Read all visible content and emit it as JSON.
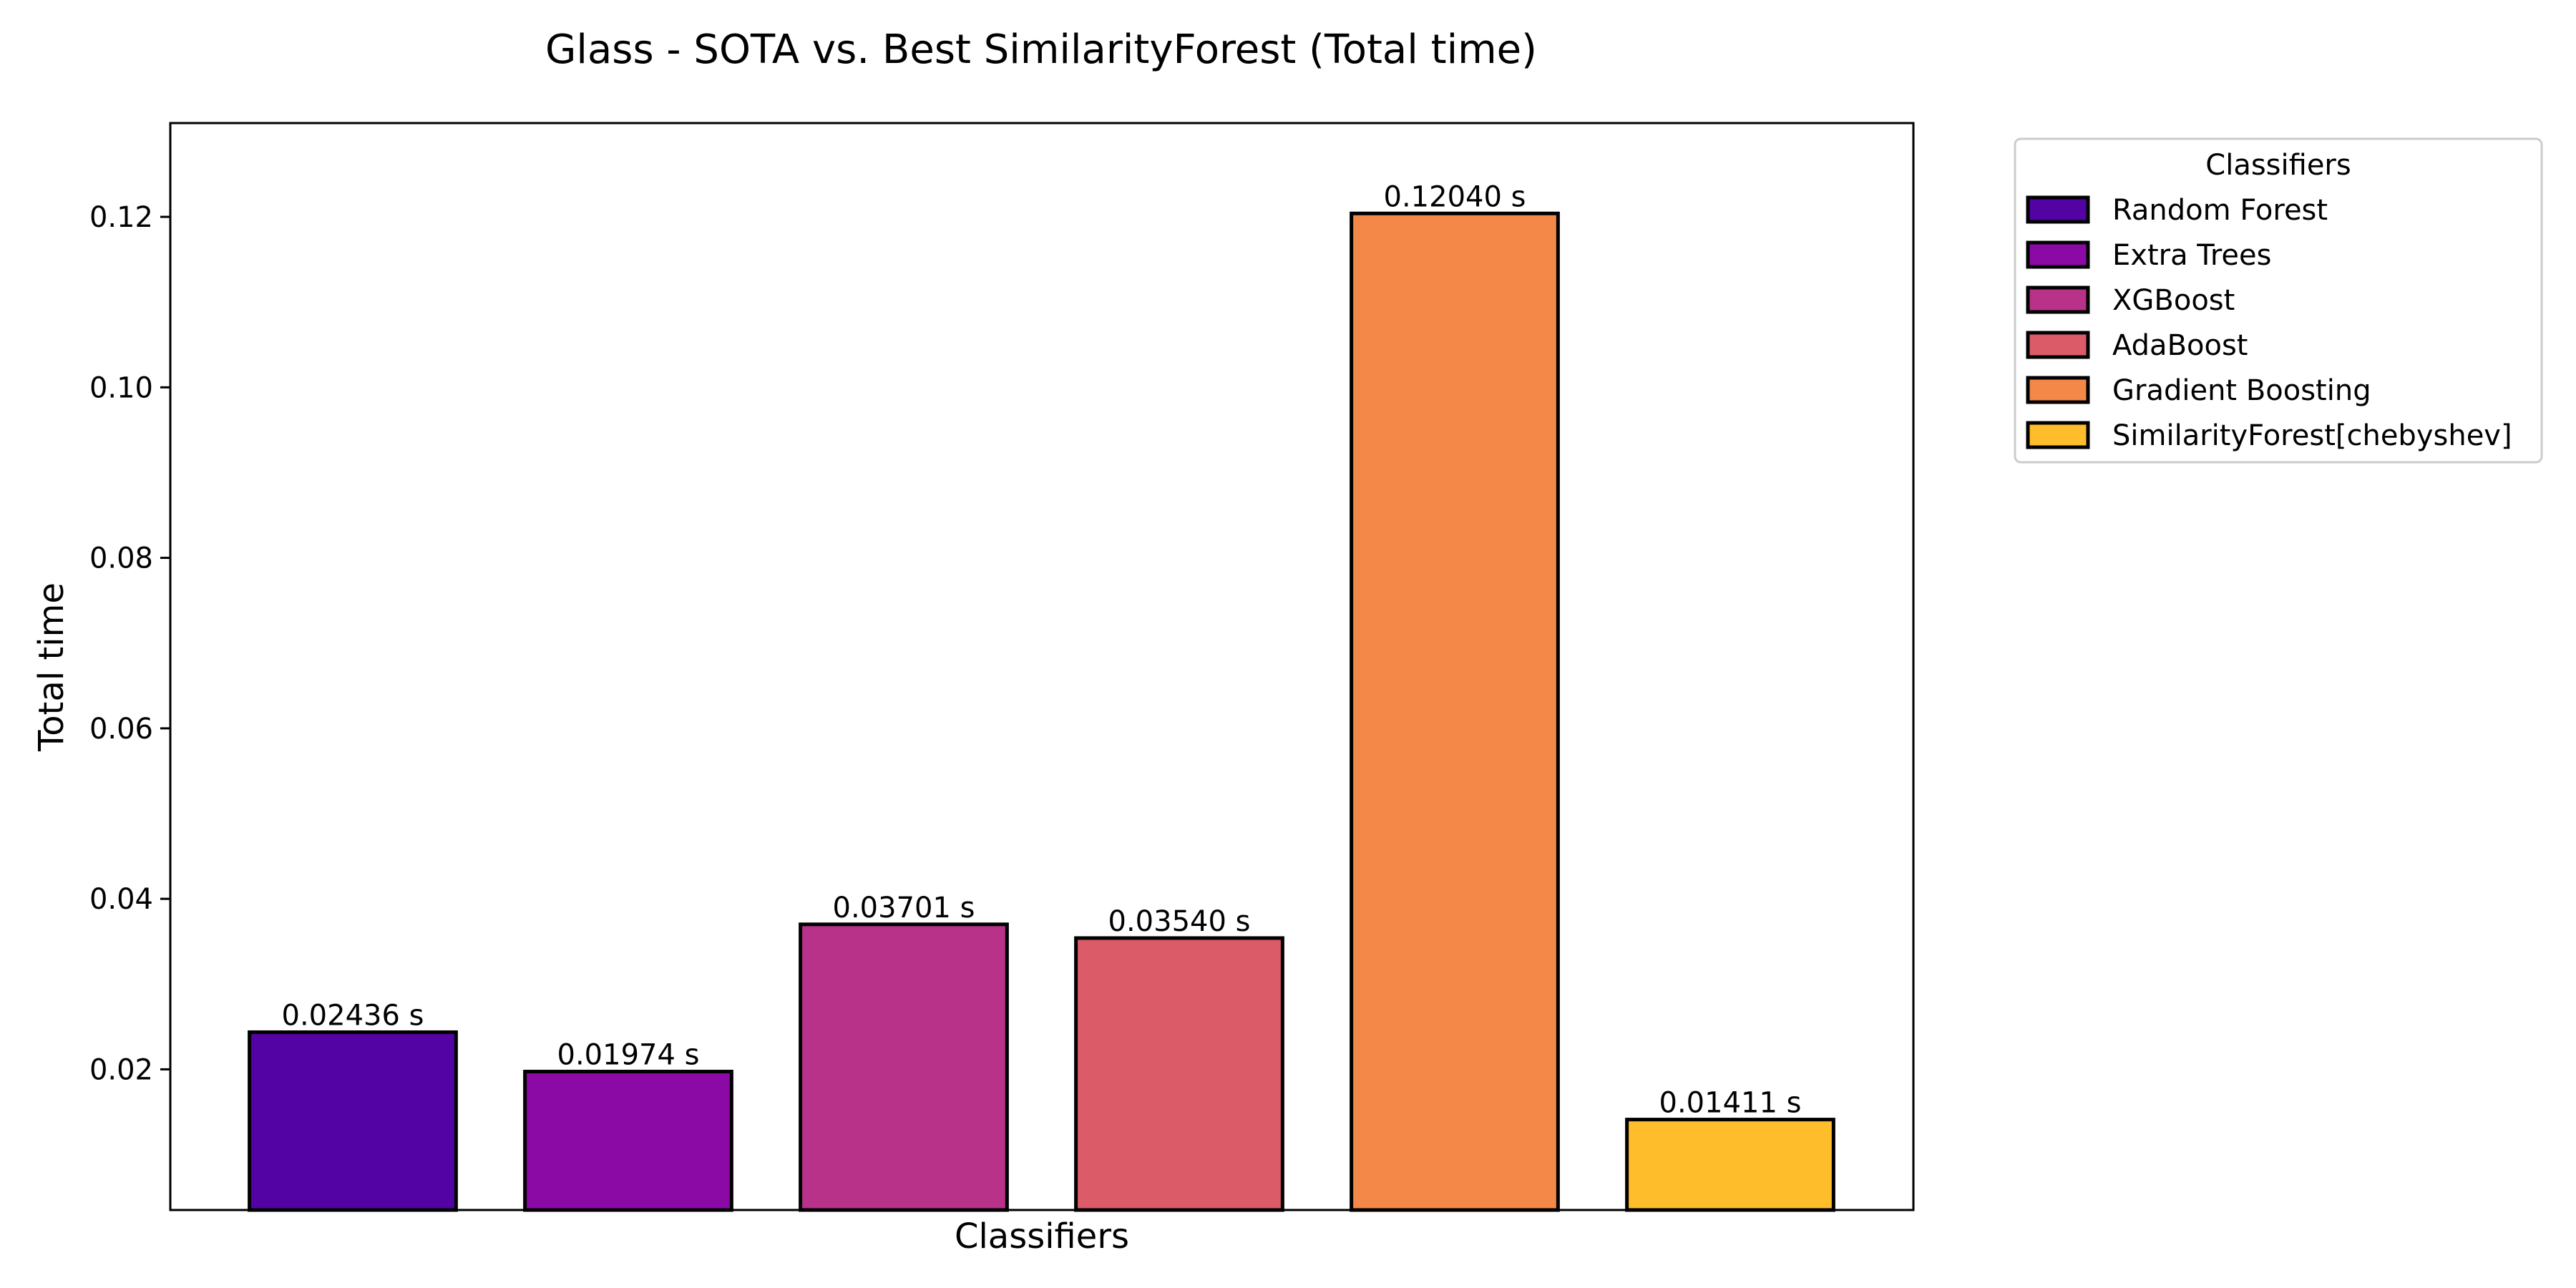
{
  "chart_data": {
    "type": "bar",
    "title": "Glass - SOTA vs. Best SimilarityForest (Total time)",
    "xlabel": "Classifiers",
    "ylabel": "Total time",
    "ylim": [
      0.0035,
      0.131
    ],
    "yticks": [
      "0.02",
      "0.04",
      "0.06",
      "0.08",
      "0.10",
      "0.12"
    ],
    "grid": false,
    "legend": {
      "title": "Classifiers",
      "position": "outside-right-top"
    },
    "categories": [
      "Random Forest",
      "Extra Trees",
      "XGBoost",
      "AdaBoost",
      "Gradient Boosting",
      "SimilarityForest[chebyshev]"
    ],
    "values": [
      0.02436,
      0.01974,
      0.03701,
      0.0354,
      0.1204,
      0.01411
    ],
    "data_labels": [
      "0.02436 s",
      "0.01974 s",
      "0.03701 s",
      "0.03540 s",
      "0.12040 s",
      "0.01411 s"
    ],
    "colors": [
      "#5302a3",
      "#8b0aa5",
      "#b83289",
      "#db5c68",
      "#f48849",
      "#febd2a"
    ],
    "edge_color": "#000000"
  }
}
